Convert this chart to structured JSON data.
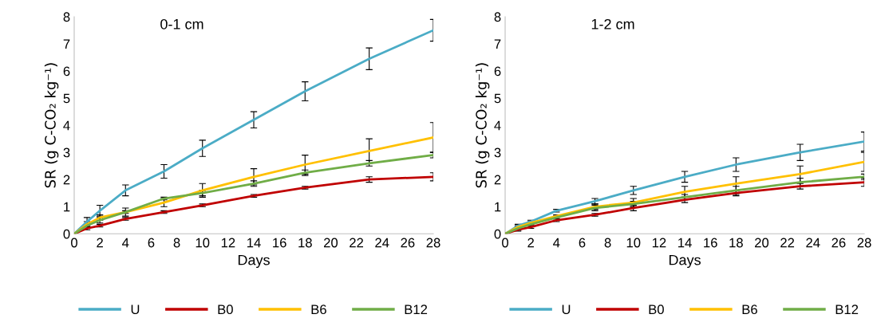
{
  "chart_data": [
    {
      "type": "line",
      "title": "0-1 cm",
      "xlabel": "Days",
      "ylabel": "SR (g C-CO₂ kg⁻¹)",
      "x": [
        0,
        1,
        2,
        4,
        7,
        10,
        14,
        18,
        23,
        28
      ],
      "xlim": [
        0,
        28
      ],
      "xticks": [
        0,
        2,
        4,
        6,
        8,
        10,
        12,
        14,
        16,
        18,
        20,
        22,
        24,
        26,
        28
      ],
      "ylim": [
        0,
        8
      ],
      "yticks": [
        0,
        1,
        2,
        3,
        4,
        5,
        6,
        7,
        8
      ],
      "grid": false,
      "legend": "bottom",
      "marker": "none",
      "line_style": "solid",
      "series": [
        {
          "name": "U",
          "color": "#4bacc6",
          "values": [
            0,
            0.45,
            0.85,
            1.6,
            2.3,
            3.15,
            4.2,
            5.25,
            6.45,
            7.5
          ],
          "errors": [
            null,
            0.15,
            0.2,
            0.2,
            0.25,
            0.3,
            0.3,
            0.35,
            0.4,
            0.4
          ]
        },
        {
          "name": "B0",
          "color": "#c00000",
          "values": [
            0,
            0.2,
            0.3,
            0.55,
            0.8,
            1.05,
            1.4,
            1.7,
            2.0,
            2.1
          ],
          "errors": [
            null,
            0.05,
            0.05,
            0.05,
            0.05,
            0.05,
            0.05,
            0.05,
            0.1,
            0.15
          ]
        },
        {
          "name": "B6",
          "color": "#ffc000",
          "values": [
            0,
            0.35,
            0.6,
            0.8,
            1.15,
            1.6,
            2.1,
            2.55,
            3.05,
            3.55
          ],
          "errors": [
            null,
            0.1,
            0.1,
            0.15,
            0.15,
            0.25,
            0.3,
            0.35,
            0.45,
            0.55
          ]
        },
        {
          "name": "B12",
          "color": "#70ad47",
          "values": [
            0,
            0.3,
            0.5,
            0.8,
            1.3,
            1.5,
            1.85,
            2.25,
            2.6,
            2.9
          ],
          "errors": [
            null,
            0.05,
            0.1,
            0.05,
            0.05,
            0.1,
            0.1,
            0.1,
            0.1,
            0.1
          ]
        }
      ]
    },
    {
      "type": "line",
      "title": "1-2 cm",
      "xlabel": "Days",
      "ylabel": "SR (g C-CO₂ kg⁻¹)",
      "x": [
        0,
        1,
        2,
        4,
        7,
        10,
        14,
        18,
        23,
        28
      ],
      "xlim": [
        0,
        28
      ],
      "xticks": [
        0,
        2,
        4,
        6,
        8,
        10,
        12,
        14,
        16,
        18,
        20,
        22,
        24,
        26,
        28
      ],
      "ylim": [
        0,
        8
      ],
      "yticks": [
        0,
        1,
        2,
        3,
        4,
        5,
        6,
        7,
        8
      ],
      "grid": false,
      "legend": "bottom",
      "marker": "none",
      "line_style": "solid",
      "series": [
        {
          "name": "U",
          "color": "#4bacc6",
          "values": [
            0,
            0.3,
            0.45,
            0.85,
            1.2,
            1.6,
            2.1,
            2.55,
            3.0,
            3.4
          ],
          "errors": [
            null,
            0.05,
            0.05,
            0.05,
            0.1,
            0.15,
            0.2,
            0.25,
            0.3,
            0.35
          ]
        },
        {
          "name": "B0",
          "color": "#c00000",
          "values": [
            0,
            0.15,
            0.25,
            0.5,
            0.7,
            0.95,
            1.25,
            1.5,
            1.75,
            1.9
          ],
          "errors": [
            null,
            0.05,
            0.05,
            0.05,
            0.05,
            0.1,
            0.1,
            0.1,
            0.1,
            0.15
          ]
        },
        {
          "name": "B6",
          "color": "#ffc000",
          "values": [
            0,
            0.25,
            0.4,
            0.65,
            1.0,
            1.15,
            1.55,
            1.85,
            2.2,
            2.65
          ],
          "errors": [
            null,
            0.05,
            0.05,
            0.05,
            0.1,
            0.15,
            0.2,
            0.25,
            0.3,
            0.35
          ]
        },
        {
          "name": "B12",
          "color": "#70ad47",
          "values": [
            0,
            0.2,
            0.35,
            0.6,
            0.95,
            1.1,
            1.35,
            1.6,
            1.9,
            2.1
          ],
          "errors": [
            null,
            0.05,
            0.05,
            0.05,
            0.1,
            0.1,
            0.1,
            0.15,
            0.15,
            0.1
          ]
        }
      ]
    }
  ]
}
